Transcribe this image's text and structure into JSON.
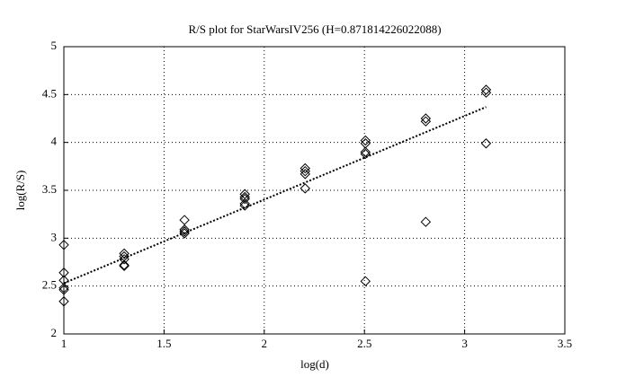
{
  "chart_data": {
    "type": "scatter",
    "title": "R/S plot for StarWarsIV256 (H=0.871814226022088)",
    "x_label": "log(d)",
    "y_label": "log(R/S)",
    "x": [
      1,
      1,
      1,
      1,
      1,
      1,
      1.301,
      1.301,
      1.301,
      1.301,
      1.301,
      1.602,
      1.602,
      1.602,
      1.602,
      1.903,
      1.903,
      1.903,
      1.903,
      1.903,
      2.204,
      2.204,
      2.204,
      2.204,
      2.505,
      2.505,
      2.505,
      2.505,
      2.505,
      2.806,
      2.806,
      2.806,
      3.107,
      3.107,
      3.107
    ],
    "y": [
      2.93,
      2.64,
      2.56,
      2.48,
      2.46,
      2.34,
      2.84,
      2.81,
      2.78,
      2.72,
      2.71,
      3.19,
      3.09,
      3.07,
      3.05,
      3.46,
      3.43,
      3.41,
      3.36,
      3.34,
      3.73,
      3.7,
      3.67,
      3.52,
      4.02,
      3.99,
      3.9,
      3.88,
      2.55,
      4.25,
      4.22,
      3.17,
      4.55,
      4.52,
      3.99
    ],
    "color": "#000000",
    "fit_line": {
      "x": [
        1,
        3.107
      ],
      "y": [
        2.53,
        4.37
      ]
    },
    "xlim": [
      1,
      3.5
    ],
    "xticks": [
      1,
      1.5,
      2,
      2.5,
      3,
      3.5
    ],
    "ylim": [
      2,
      5
    ],
    "yticks": [
      2,
      2.5,
      3,
      3.5,
      4,
      4.5,
      5
    ],
    "grid": true
  }
}
